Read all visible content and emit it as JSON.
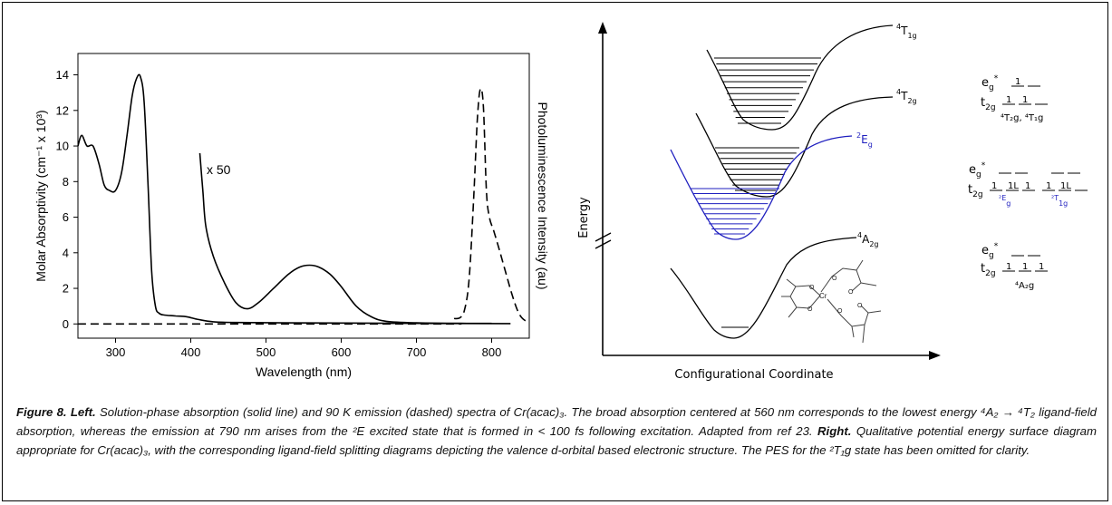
{
  "caption": {
    "fig_label": "Figure 8. Left.",
    "left_text": "Solution-phase absorption (solid line) and 90 K emission (dashed) spectra of Cr(acac)₃. The broad absorption centered at 560 nm corresponds to the lowest energy ⁴A₂ → ⁴T₂ ligand-field absorption, whereas the emission at 790 nm arises from the ²E excited state that is formed in < 100 fs following excitation. Adapted from ref 23.",
    "right_label": "Right.",
    "right_text": "Qualitative potential energy surface diagram appropriate for Cr(acac)₃, with the corresponding ligand-field splitting diagrams depicting the valence d-orbital based electronic structure. The PES for the ²T₁g state has been omitted for clarity."
  },
  "chart_data": [
    {
      "type": "line",
      "xlabel": "Wavelength (nm)",
      "ylabel": "Molar Absorptivity (cm⁻¹ x 10³)",
      "ylabel_right": "Photoluminescence Intensity (au)",
      "annotation": "x 50",
      "xlim": [
        250,
        850
      ],
      "ylim": [
        -0.8,
        15.2
      ],
      "x_ticks": [
        300,
        400,
        500,
        600,
        700,
        800
      ],
      "y_ticks": [
        0,
        2,
        4,
        6,
        8,
        10,
        12,
        14
      ],
      "series": [
        {
          "style": "solid",
          "points": [
            [
              250,
              10.0
            ],
            [
              255,
              10.6
            ],
            [
              262,
              10.0
            ],
            [
              270,
              10.0
            ],
            [
              278,
              9.0
            ],
            [
              285,
              7.8
            ],
            [
              292,
              7.5
            ],
            [
              300,
              7.5
            ],
            [
              308,
              8.5
            ],
            [
              315,
              10.5
            ],
            [
              322,
              12.8
            ],
            [
              328,
              13.8
            ],
            [
              333,
              13.9
            ],
            [
              338,
              12.5
            ],
            [
              343,
              8.0
            ],
            [
              348,
              3.0
            ],
            [
              353,
              1.0
            ],
            [
              358,
              0.6
            ],
            [
              365,
              0.5
            ],
            [
              380,
              0.45
            ],
            [
              395,
              0.4
            ],
            [
              410,
              0.25
            ],
            [
              430,
              0.12
            ],
            [
              460,
              0.08
            ],
            [
              520,
              0.06
            ],
            [
              600,
              0.05
            ],
            [
              700,
              0.03
            ],
            [
              825,
              0.02
            ]
          ]
        },
        {
          "style": "solid",
          "scale": "x 50",
          "points": [
            [
              412,
              9.6
            ],
            [
              416,
              7.5
            ],
            [
              420,
              5.5
            ],
            [
              430,
              3.8
            ],
            [
              445,
              2.3
            ],
            [
              460,
              1.2
            ],
            [
              475,
              0.85
            ],
            [
              490,
              1.2
            ],
            [
              510,
              2.0
            ],
            [
              530,
              2.8
            ],
            [
              545,
              3.2
            ],
            [
              558,
              3.3
            ],
            [
              570,
              3.2
            ],
            [
              585,
              2.8
            ],
            [
              600,
              2.1
            ],
            [
              620,
              1.0
            ],
            [
              640,
              0.4
            ],
            [
              660,
              0.15
            ],
            [
              700,
              0.06
            ],
            [
              740,
              0.04
            ],
            [
              800,
              0.03
            ]
          ]
        },
        {
          "style": "dashed",
          "points": [
            [
              750,
              0.3
            ],
            [
              758,
              0.35
            ],
            [
              764,
              0.8
            ],
            [
              770,
              2.5
            ],
            [
              776,
              7.0
            ],
            [
              781,
              11.5
            ],
            [
              785,
              13.2
            ],
            [
              789,
              12.2
            ],
            [
              793,
              7.5
            ],
            [
              797,
              6.0
            ],
            [
              803,
              5.2
            ],
            [
              810,
              4.2
            ],
            [
              818,
              3.0
            ],
            [
              826,
              1.8
            ],
            [
              834,
              0.8
            ],
            [
              840,
              0.35
            ],
            [
              846,
              0.15
            ]
          ]
        },
        {
          "style": "dashed",
          "points": [
            [
              250,
              0.0
            ],
            [
              760,
              0.0
            ]
          ]
        }
      ]
    }
  ],
  "diagram": {
    "y_axis_label": "Energy",
    "x_axis_label": "Configurational Coordinate",
    "states": {
      "t1g": {
        "base": "4",
        "letter": "T",
        "sub": "1g"
      },
      "t2g": {
        "base": "4",
        "letter": "T",
        "sub": "2g"
      },
      "eg": {
        "base": "2",
        "letter": "E",
        "sub": "g"
      },
      "a2g": {
        "base": "4",
        "letter": "A",
        "sub": "2g"
      }
    },
    "splitting": {
      "eg_star": "e",
      "eg_star_sub": "g",
      "eg_star_sup": "*",
      "t2g_letter": "t",
      "t2g_sub": "2g",
      "d1_label": "⁴T₂g, ⁴T₁g",
      "d2_label_a": "²E",
      "d2_label_a_sub": "g",
      "d2_label_b": "²T",
      "d2_label_b_sub": "1g",
      "d3_label": "⁴A₂g",
      "electron_mark": "1",
      "paired_mark": "1L"
    },
    "colors": {
      "doublet": "#1f1fbf",
      "quartet": "#000000"
    },
    "molecule_atoms": {
      "metal": "Cr",
      "oxygen": "O"
    }
  }
}
